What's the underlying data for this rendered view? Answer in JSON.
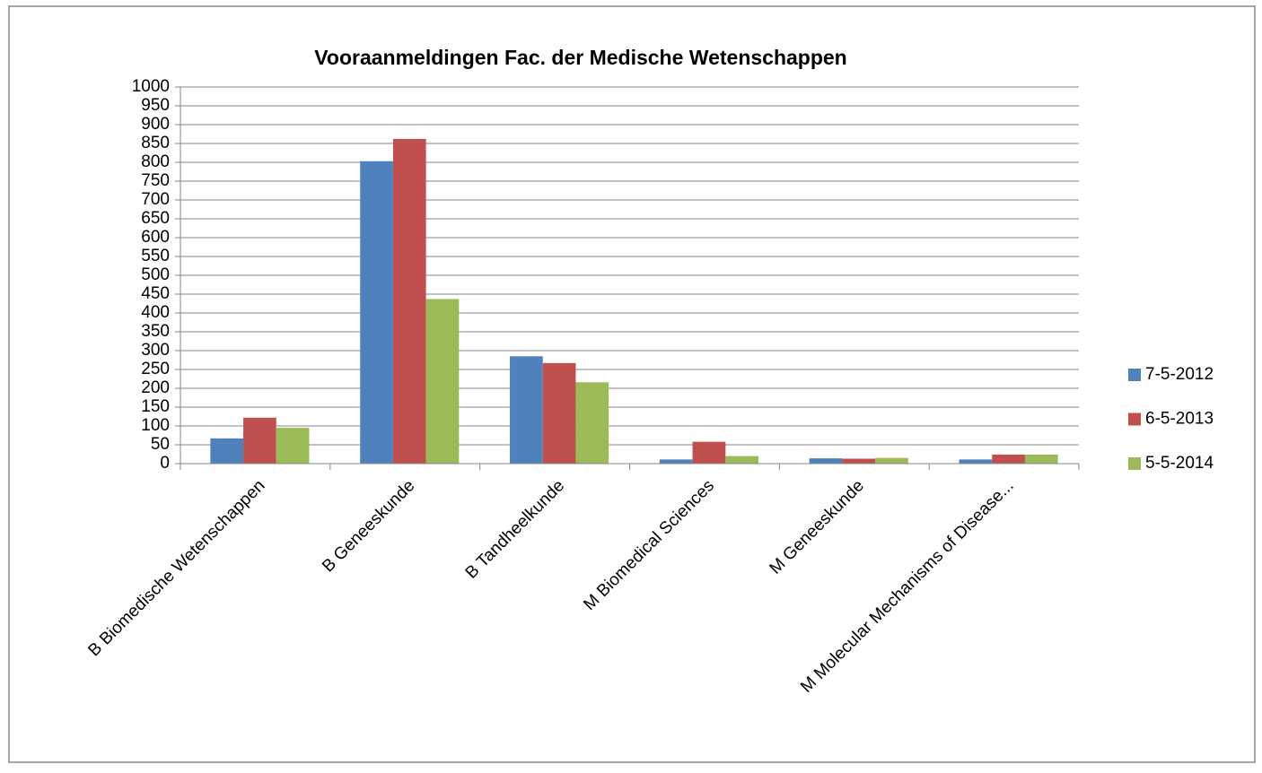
{
  "chart_data": {
    "type": "bar",
    "title": "Vooraanmeldingen Fac. der Medische Wetenschappen",
    "categories": [
      "B Biomedische Wetenschappen",
      "B Geneeskunde",
      "B Tandheelkunde",
      "M Biomedical Sciences",
      "M Geneeskunde",
      "M Molecular Mechanisms of Disease..."
    ],
    "series": [
      {
        "name": "7-5-2012",
        "color": "#4f81bd",
        "values": [
          67,
          803,
          285,
          11,
          14,
          11
        ]
      },
      {
        "name": "6-5-2013",
        "color": "#c0504d",
        "values": [
          122,
          862,
          267,
          58,
          13,
          24
        ]
      },
      {
        "name": "5-5-2014",
        "color": "#9bbb59",
        "values": [
          95,
          437,
          216,
          20,
          15,
          24
        ]
      }
    ],
    "ylim": [
      0,
      1000
    ],
    "yticks": [
      0,
      50,
      100,
      150,
      200,
      250,
      300,
      350,
      400,
      450,
      500,
      550,
      600,
      650,
      700,
      750,
      800,
      850,
      900,
      950,
      1000
    ],
    "grid": true,
    "legend": "right"
  }
}
